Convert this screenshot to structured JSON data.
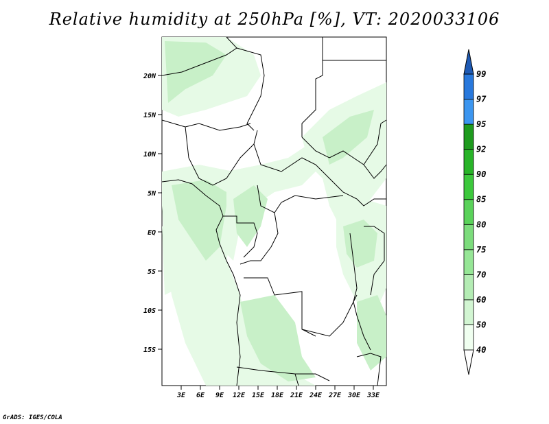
{
  "title": "Relative humidity at 250hPa [%], VT: 2020033106",
  "credit": "GrADS: IGES/COLA",
  "lat_labels": [
    "20N",
    "15N",
    "10N",
    "5N",
    "EQ",
    "5S",
    "10S",
    "15S"
  ],
  "lon_labels": [
    "3E",
    "6E",
    "9E",
    "12E",
    "15E",
    "18E",
    "21E",
    "24E",
    "27E",
    "30E",
    "33E"
  ],
  "colorbar": {
    "levels": [
      "40",
      "50",
      "60",
      "70",
      "75",
      "80",
      "85",
      "90",
      "92",
      "95",
      "97",
      "99"
    ],
    "colors": [
      "#f0fff0",
      "#d2f5d2",
      "#b4ecb4",
      "#96e696",
      "#7cdc7c",
      "#5ad25a",
      "#3cc83c",
      "#28b428",
      "#1e9b1e",
      "#3c96f0",
      "#2878dc",
      "#1e5ab4"
    ]
  },
  "map_colors": {
    "ocean": "#ffffff",
    "light_green": "#e6fae6",
    "mid_green": "#c8f0c8",
    "green": "#aae6aa",
    "border": "#000000"
  }
}
